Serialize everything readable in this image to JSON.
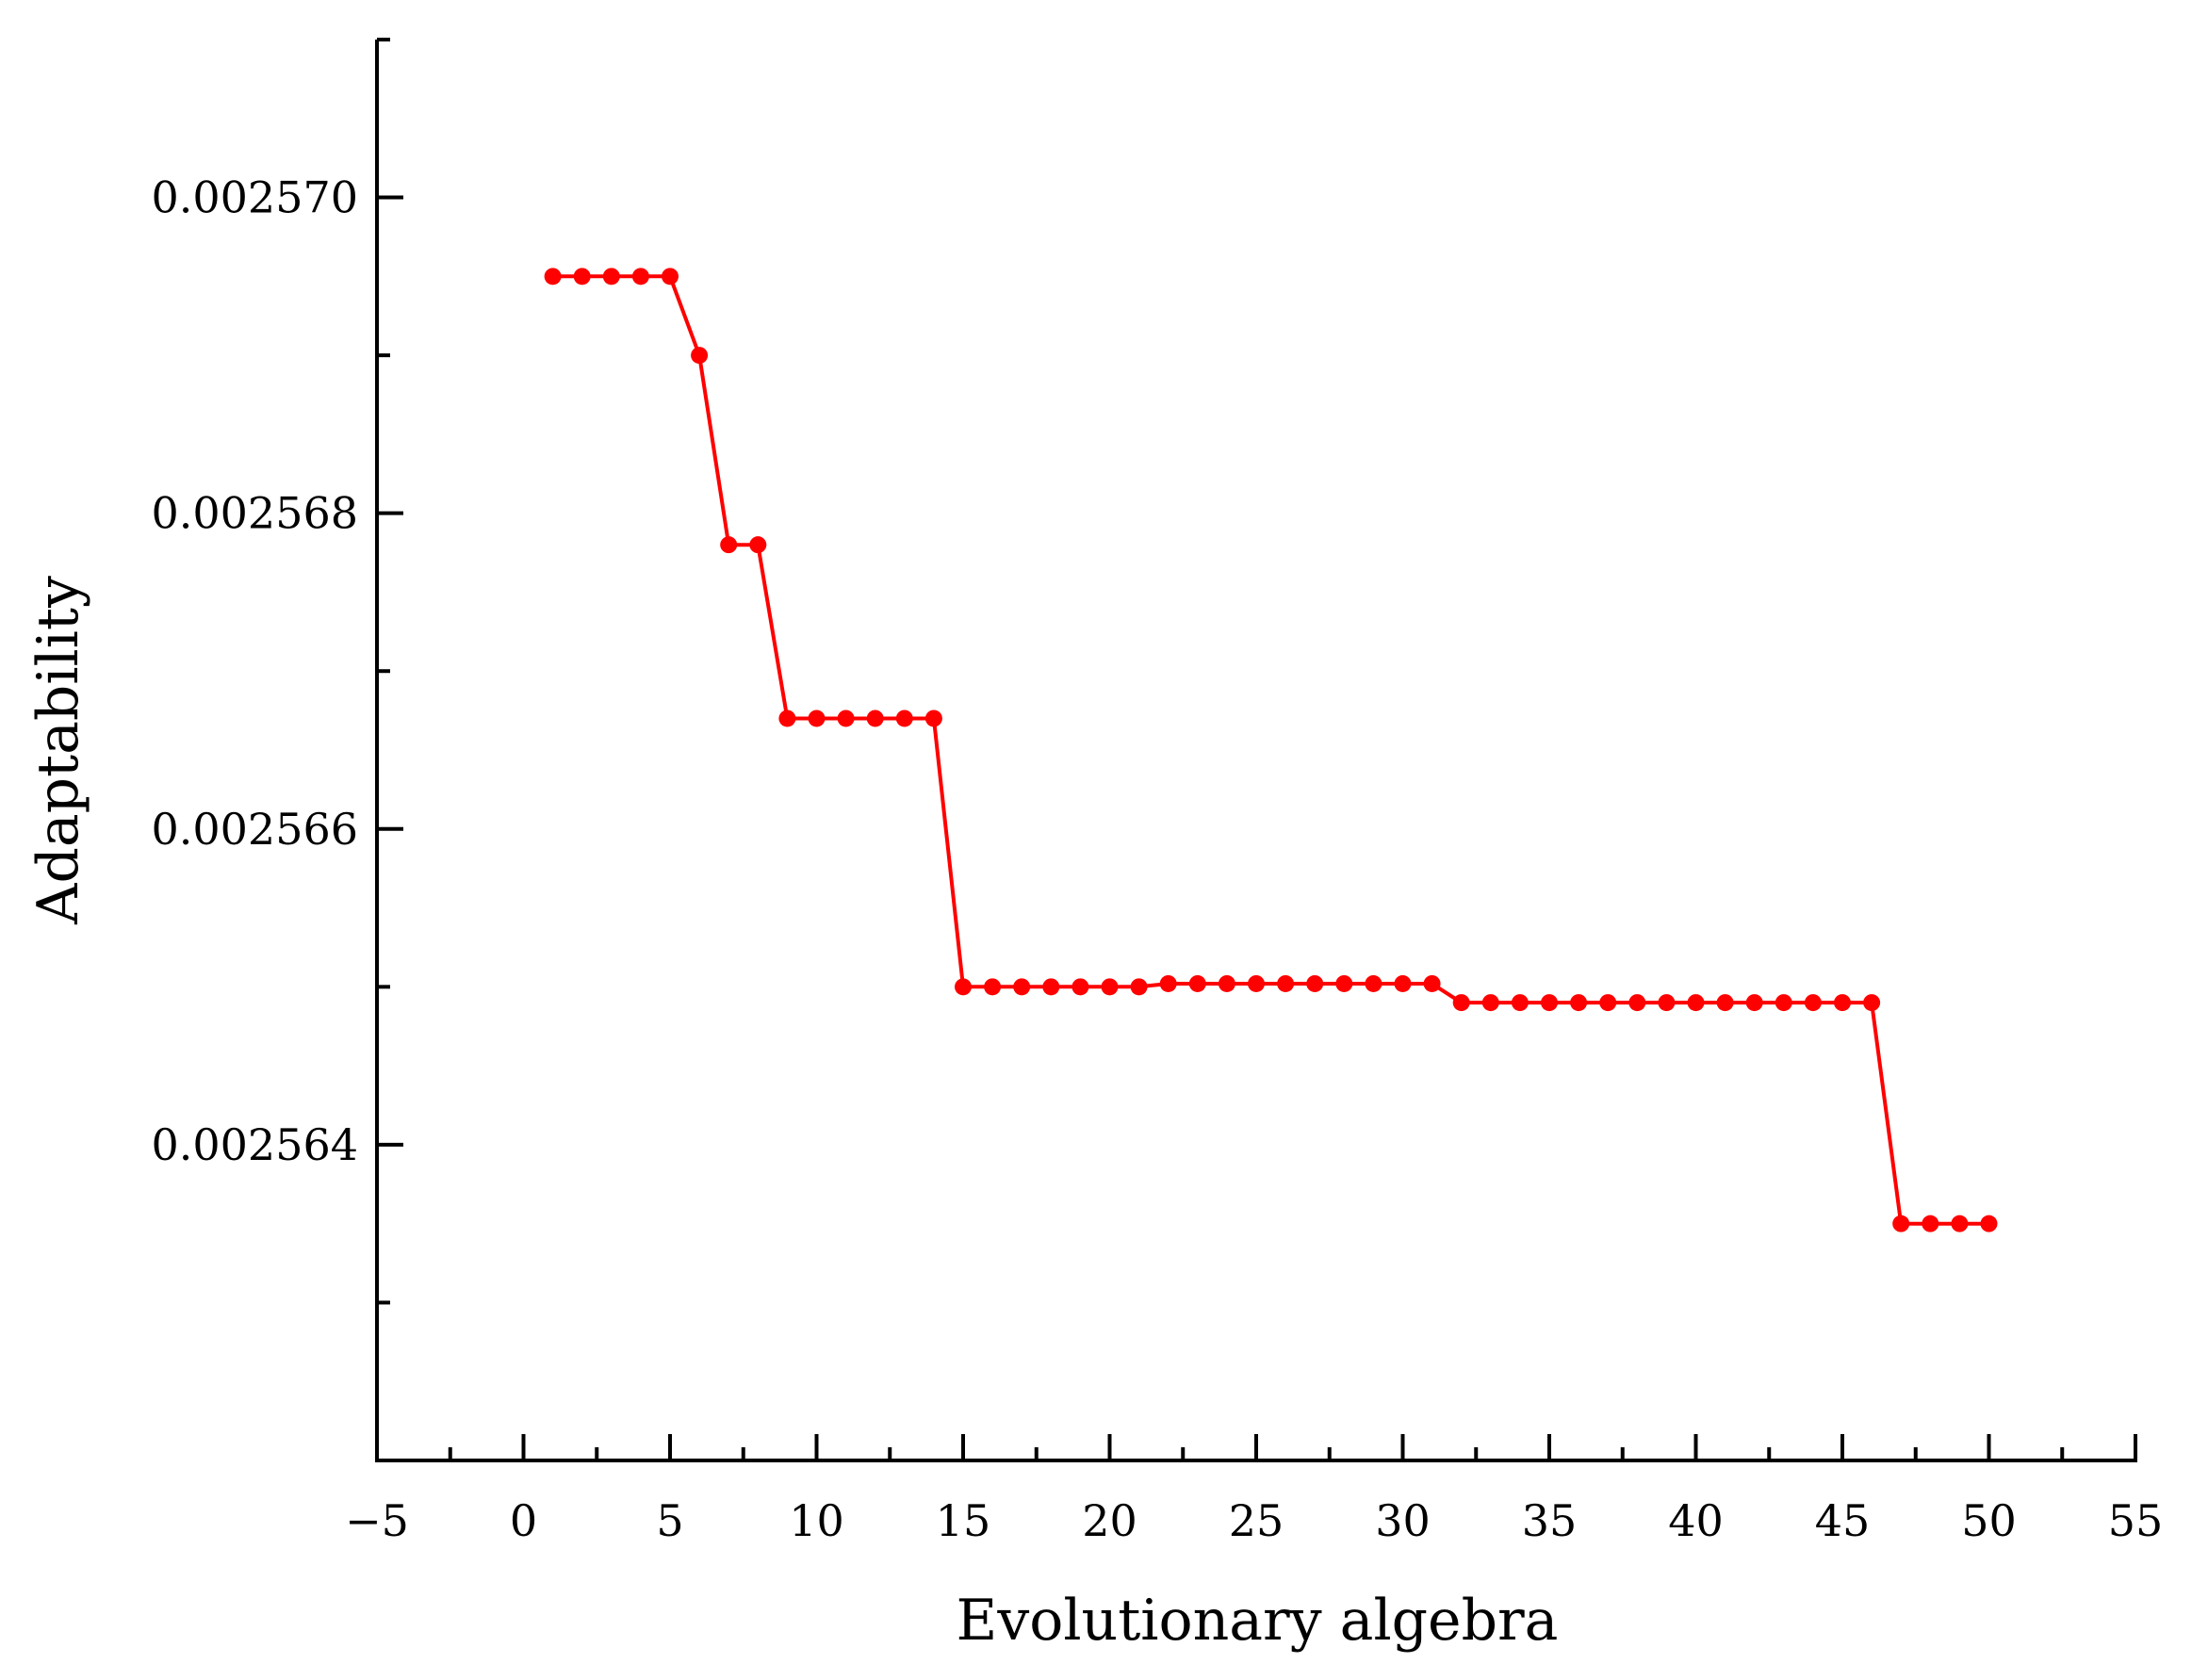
{
  "chart_data": {
    "type": "line",
    "title": "",
    "xlabel": "Evolutionary algebra",
    "ylabel": "Adaptability",
    "xlim": [
      -5,
      55
    ],
    "ylim": [
      0.002562,
      0.002571
    ],
    "x_ticks": [
      -5,
      0,
      5,
      10,
      15,
      20,
      25,
      30,
      35,
      40,
      45,
      50,
      55
    ],
    "x_tick_labels": [
      "−5",
      "0",
      "5",
      "10",
      "15",
      "20",
      "25",
      "30",
      "35",
      "40",
      "45",
      "50",
      "55"
    ],
    "y_ticks": [
      0.002564,
      0.002566,
      0.002568,
      0.00257
    ],
    "y_tick_labels": [
      "0.002564",
      "0.002566",
      "0.002568",
      "0.002570"
    ],
    "grid": false,
    "color": "#ff0000",
    "series": [
      {
        "x": [
          1,
          2,
          3,
          4,
          5,
          6,
          7,
          8,
          9,
          10,
          11,
          12,
          13,
          14,
          15,
          16,
          17,
          18,
          19,
          20,
          21,
          22,
          23,
          24,
          25,
          26,
          27,
          28,
          29,
          30,
          31,
          32,
          33,
          34,
          35,
          36,
          37,
          38,
          39,
          40,
          41,
          42,
          43,
          44,
          45,
          46,
          47,
          48,
          49,
          50
        ],
        "y": [
          0.0025695,
          0.0025695,
          0.0025695,
          0.0025695,
          0.0025695,
          0.002569,
          0.0025678,
          0.0025678,
          0.0025667,
          0.0025667,
          0.0025667,
          0.0025667,
          0.0025667,
          0.0025667,
          0.002565,
          0.002565,
          0.002565,
          0.002565,
          0.002565,
          0.002565,
          0.002565,
          0.00256502,
          0.00256502,
          0.00256502,
          0.00256502,
          0.00256502,
          0.00256502,
          0.00256502,
          0.00256502,
          0.00256502,
          0.00256502,
          0.0025649,
          0.0025649,
          0.0025649,
          0.0025649,
          0.0025649,
          0.0025649,
          0.0025649,
          0.0025649,
          0.0025649,
          0.0025649,
          0.0025649,
          0.0025649,
          0.0025649,
          0.0025649,
          0.0025649,
          0.0025635,
          0.0025635,
          0.0025635,
          0.0025635
        ]
      }
    ]
  }
}
